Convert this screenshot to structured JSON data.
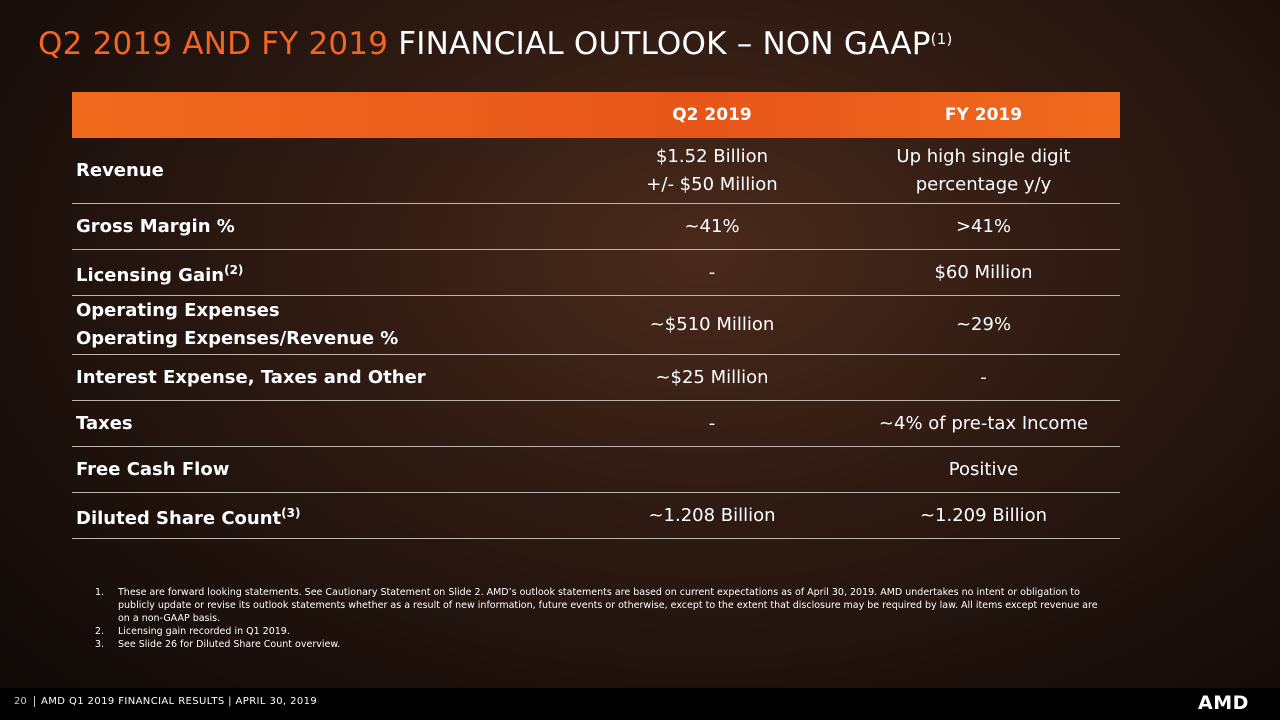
{
  "header": {
    "title_orange": "Q2 2019 AND FY 2019",
    "title_white": "FINANCIAL OUTLOOK – NON GAAP",
    "title_sup": "(1)"
  },
  "table": {
    "columns": [
      "Q2 2019",
      "FY 2019"
    ],
    "rows": [
      {
        "label": [
          "Revenue"
        ],
        "q2": [
          "$1.52 Billion",
          "+/- $50 Million"
        ],
        "fy": [
          "Up high single digit",
          "percentage y/y"
        ]
      },
      {
        "label": [
          "Gross Margin %"
        ],
        "q2": [
          "~41%"
        ],
        "fy": [
          ">41%"
        ]
      },
      {
        "label": [
          "Licensing Gain"
        ],
        "sup": "(2)",
        "q2": [
          "-"
        ],
        "fy": [
          "$60 Million"
        ]
      },
      {
        "label": [
          "Operating Expenses",
          "Operating Expenses/Revenue %"
        ],
        "q2": [
          "~$510 Million"
        ],
        "fy": [
          "~29%"
        ]
      },
      {
        "label": [
          "Interest Expense, Taxes and Other"
        ],
        "q2": [
          "~$25 Million"
        ],
        "fy": [
          "-"
        ]
      },
      {
        "label": [
          "Taxes"
        ],
        "q2": [
          "-"
        ],
        "fy": [
          "~4% of pre-tax Income"
        ]
      },
      {
        "label": [
          "Free Cash Flow"
        ],
        "fy": [
          "Positive"
        ]
      },
      {
        "label": [
          "Diluted Share Count"
        ],
        "sup": "(3)",
        "q2": [
          "~1.208 Billion"
        ],
        "fy": [
          "~1.209 Billion"
        ]
      }
    ]
  },
  "footnotes": [
    {
      "number": "1.",
      "text": "These are forward looking statements.  See Cautionary Statement on Slide 2. AMD’s outlook statements are based on current expectations as of April 30, 2019.  AMD undertakes no intent or obligation to publicly update or revise its outlook statements whether as a result of new information, future events or otherwise, except to the extent that disclosure may be required by law.   All items except revenue are on a non-GAAP basis."
    },
    {
      "number": "2.",
      "text": "Licensing gain recorded in Q1 2019."
    },
    {
      "number": "3.",
      "text": "See Slide 26 for Diluted Share Count overview."
    }
  ],
  "footer": {
    "page": "20",
    "text": "AMD Q1 2019 FINANCIAL RESULTS | APRIL 30, 2019",
    "logo": "AMD"
  }
}
